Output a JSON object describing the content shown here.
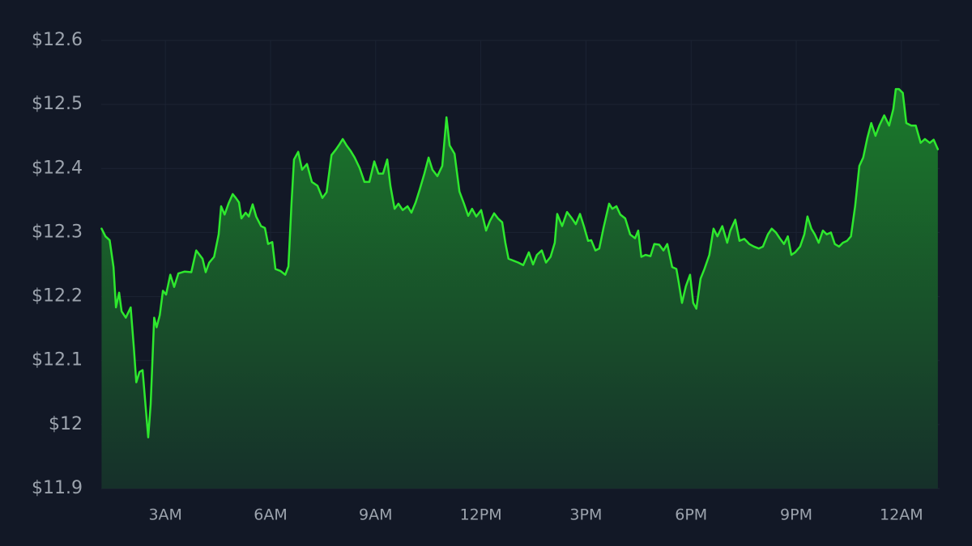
{
  "chart_data": {
    "type": "line",
    "color": "#2ee82e",
    "fill": true,
    "grid": true,
    "x": [
      1.18,
      1.29,
      1.41,
      1.52,
      1.59,
      1.68,
      1.75,
      1.87,
      2.01,
      2.1,
      2.17,
      2.26,
      2.35,
      2.45,
      2.51,
      2.58,
      2.68,
      2.75,
      2.84,
      2.93,
      3.02,
      3.14,
      3.25,
      3.37,
      3.55,
      3.74,
      3.88,
      4.06,
      4.15,
      4.25,
      4.39,
      4.52,
      4.59,
      4.69,
      4.8,
      4.92,
      5.01,
      5.1,
      5.17,
      5.29,
      5.38,
      5.49,
      5.59,
      5.73,
      5.84,
      5.93,
      6.05,
      6.14,
      6.28,
      6.42,
      6.51,
      6.6,
      6.67,
      6.79,
      6.9,
      7.04,
      7.18,
      7.34,
      7.48,
      7.6,
      7.74,
      7.87,
      7.97,
      8.06,
      8.17,
      8.29,
      8.4,
      8.54,
      8.68,
      8.82,
      8.96,
      9.08,
      9.21,
      9.33,
      9.42,
      9.54,
      9.65,
      9.77,
      9.91,
      10.02,
      10.14,
      10.25,
      10.39,
      10.51,
      10.62,
      10.76,
      10.9,
      11.02,
      11.11,
      11.25,
      11.39,
      11.52,
      11.64,
      11.75,
      11.87,
      12.01,
      12.15,
      12.26,
      12.38,
      12.49,
      12.61,
      12.7,
      12.79,
      12.93,
      13.07,
      13.21,
      13.37,
      13.49,
      13.6,
      13.74,
      13.86,
      13.99,
      14.11,
      14.18,
      14.32,
      14.46,
      14.6,
      14.71,
      14.83,
      14.94,
      15.06,
      15.15,
      15.27,
      15.38,
      15.5,
      15.66,
      15.75,
      15.87,
      15.98,
      16.12,
      16.26,
      16.4,
      16.49,
      16.58,
      16.7,
      16.84,
      16.95,
      17.09,
      17.21,
      17.32,
      17.46,
      17.58,
      17.65,
      17.74,
      17.85,
      17.97,
      18.06,
      18.15,
      18.27,
      18.38,
      18.52,
      18.64,
      18.75,
      18.89,
      19.03,
      19.12,
      19.26,
      19.38,
      19.52,
      19.66,
      19.79,
      19.93,
      20.05,
      20.19,
      20.3,
      20.42,
      20.53,
      20.65,
      20.76,
      20.86,
      20.97,
      21.11,
      21.23,
      21.32,
      21.43,
      21.53,
      21.64,
      21.76,
      21.87,
      21.99,
      22.1,
      22.22,
      22.33,
      22.45,
      22.56,
      22.68,
      22.8,
      22.91,
      23.03,
      23.14,
      23.26,
      23.37,
      23.51,
      23.65,
      23.77,
      23.84,
      23.93,
      24.04,
      24.14,
      24.28,
      24.41,
      24.55,
      24.67,
      24.81,
      24.92,
      25.04
    ],
    "values": [
      12.306,
      12.294,
      12.288,
      12.246,
      12.183,
      12.206,
      12.177,
      12.167,
      12.183,
      12.12,
      12.066,
      12.082,
      12.085,
      12.019,
      11.98,
      12.032,
      12.167,
      12.152,
      12.171,
      12.209,
      12.203,
      12.234,
      12.215,
      12.236,
      12.239,
      12.238,
      12.272,
      12.259,
      12.238,
      12.253,
      12.262,
      12.297,
      12.341,
      12.328,
      12.345,
      12.36,
      12.354,
      12.347,
      12.322,
      12.331,
      12.325,
      12.344,
      12.325,
      12.31,
      12.307,
      12.282,
      12.285,
      12.243,
      12.24,
      12.234,
      12.247,
      12.347,
      12.414,
      12.426,
      12.398,
      12.407,
      12.379,
      12.373,
      12.354,
      12.363,
      12.421,
      12.43,
      12.438,
      12.446,
      12.436,
      12.427,
      12.417,
      12.401,
      12.379,
      12.379,
      12.411,
      12.392,
      12.392,
      12.414,
      12.373,
      12.337,
      12.345,
      12.335,
      12.341,
      12.331,
      12.347,
      12.366,
      12.392,
      12.417,
      12.398,
      12.388,
      12.404,
      12.48,
      12.436,
      12.423,
      12.364,
      12.345,
      12.326,
      12.337,
      12.325,
      12.335,
      12.303,
      12.318,
      12.33,
      12.322,
      12.316,
      12.284,
      12.259,
      12.256,
      12.253,
      12.249,
      12.269,
      12.25,
      12.265,
      12.272,
      12.253,
      12.262,
      12.284,
      12.329,
      12.31,
      12.332,
      12.322,
      12.313,
      12.329,
      12.31,
      12.287,
      12.288,
      12.272,
      12.275,
      12.307,
      12.345,
      12.337,
      12.341,
      12.328,
      12.322,
      12.297,
      12.291,
      12.303,
      12.262,
      12.265,
      12.263,
      12.282,
      12.281,
      12.272,
      12.282,
      12.246,
      12.243,
      12.221,
      12.19,
      12.216,
      12.234,
      12.19,
      12.181,
      12.228,
      12.243,
      12.265,
      12.306,
      12.294,
      12.31,
      12.284,
      12.303,
      12.32,
      12.287,
      12.29,
      12.282,
      12.278,
      12.275,
      12.278,
      12.297,
      12.306,
      12.3,
      12.291,
      12.282,
      12.294,
      12.265,
      12.269,
      12.278,
      12.297,
      12.325,
      12.306,
      12.297,
      12.284,
      12.303,
      12.297,
      12.3,
      12.282,
      12.278,
      12.284,
      12.287,
      12.294,
      12.341,
      12.404,
      12.417,
      12.448,
      12.471,
      12.451,
      12.467,
      12.483,
      12.467,
      12.493,
      12.524,
      12.524,
      12.518,
      12.471,
      12.467,
      12.467,
      12.44,
      12.446,
      12.44,
      12.445,
      12.43
    ],
    "xlim": [
      1.17,
      25.09
    ],
    "xticks": [
      {
        "value": 3,
        "label": "3AM"
      },
      {
        "value": 6,
        "label": "6AM"
      },
      {
        "value": 9,
        "label": "9AM"
      },
      {
        "value": 12,
        "label": "12PM"
      },
      {
        "value": 15,
        "label": "3PM"
      },
      {
        "value": 18,
        "label": "6PM"
      },
      {
        "value": 21,
        "label": "9PM"
      },
      {
        "value": 24,
        "label": "12AM"
      }
    ],
    "ylim": [
      11.9,
      12.6
    ],
    "yticks": [
      {
        "value": 11.9,
        "label": "$11.9"
      },
      {
        "value": 12,
        "label": "$12"
      },
      {
        "value": 12.1,
        "label": "$12.1"
      },
      {
        "value": 12.2,
        "label": "$12.2"
      },
      {
        "value": 12.3,
        "label": "$12.3"
      },
      {
        "value": 12.4,
        "label": "$12.4"
      },
      {
        "value": 12.5,
        "label": "$12.5"
      },
      {
        "value": 12.6,
        "label": "$12.6"
      }
    ]
  }
}
